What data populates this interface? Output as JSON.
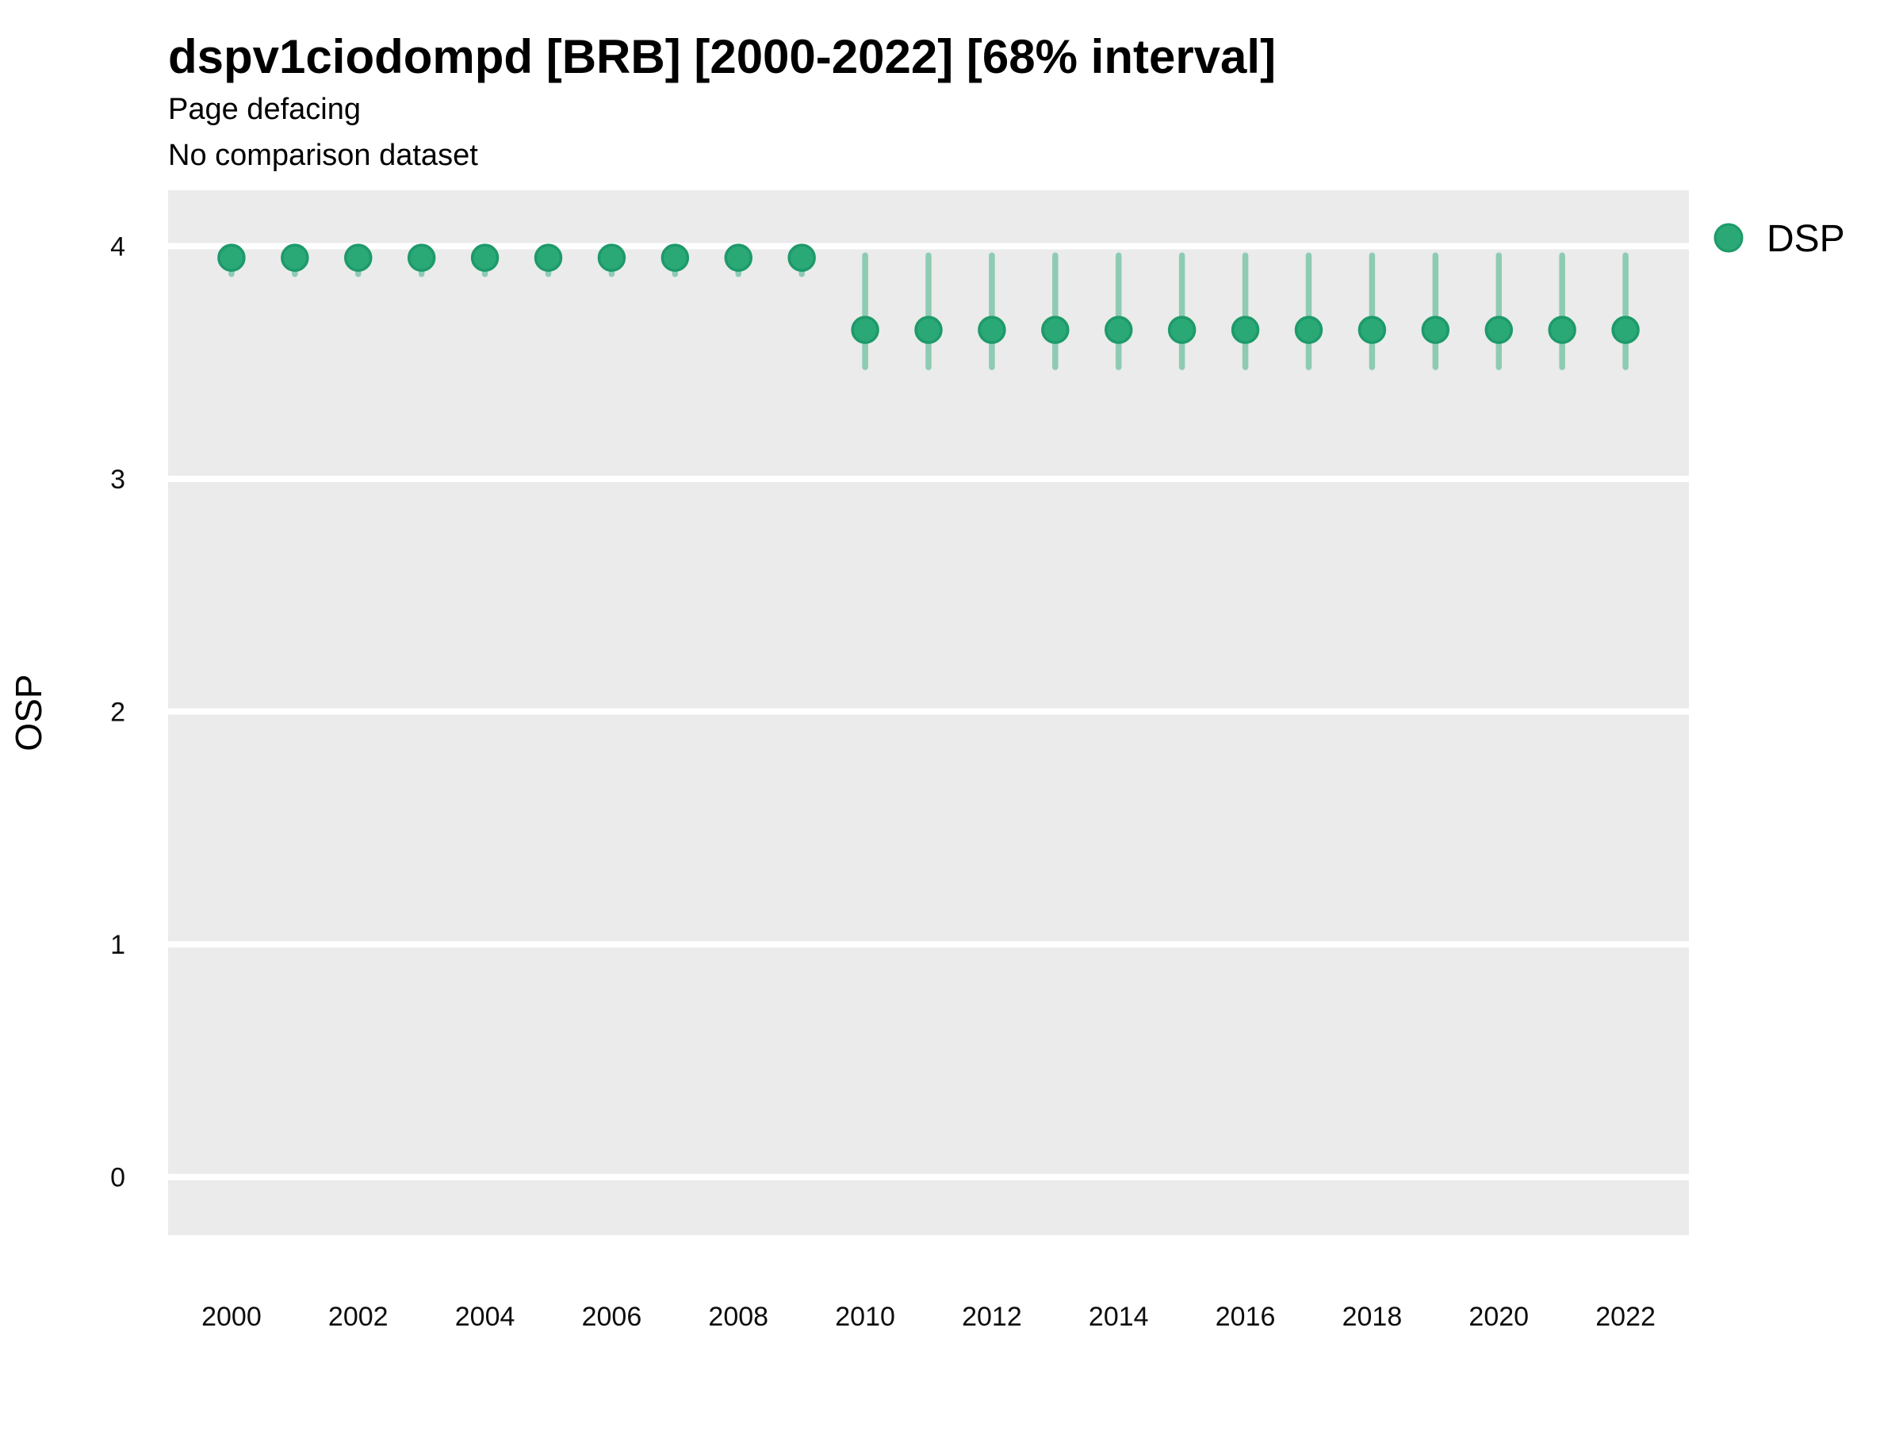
{
  "chart_data": {
    "type": "scatter",
    "title": "dspv1ciodompd [BRB] [2000-2022] [68% interval]",
    "subtitle": "Page defacing",
    "note": "No comparison dataset",
    "xlabel": "",
    "ylabel": "OSP",
    "interval": "68%",
    "grid": "horizontal-major-only",
    "legend": {
      "position": "right",
      "entries": [
        {
          "label": "DSP",
          "color": "#2aa876"
        }
      ]
    },
    "x_ticks": [
      2000,
      2002,
      2004,
      2006,
      2008,
      2010,
      2012,
      2014,
      2016,
      2018,
      2020,
      2022
    ],
    "y_ticks": [
      0,
      1,
      2,
      3,
      4
    ],
    "xlim": [
      1999.0,
      2023.0
    ],
    "ylim": [
      -0.25,
      4.24
    ],
    "series": [
      {
        "name": "DSP",
        "points": [
          {
            "year": 2000,
            "value": 3.95,
            "lo": 3.88,
            "hi": 3.99
          },
          {
            "year": 2001,
            "value": 3.95,
            "lo": 3.88,
            "hi": 3.99
          },
          {
            "year": 2002,
            "value": 3.95,
            "lo": 3.88,
            "hi": 3.99
          },
          {
            "year": 2003,
            "value": 3.95,
            "lo": 3.88,
            "hi": 3.99
          },
          {
            "year": 2004,
            "value": 3.95,
            "lo": 3.88,
            "hi": 3.99
          },
          {
            "year": 2005,
            "value": 3.95,
            "lo": 3.88,
            "hi": 3.99
          },
          {
            "year": 2006,
            "value": 3.95,
            "lo": 3.88,
            "hi": 3.99
          },
          {
            "year": 2007,
            "value": 3.95,
            "lo": 3.88,
            "hi": 3.99
          },
          {
            "year": 2008,
            "value": 3.95,
            "lo": 3.88,
            "hi": 3.99
          },
          {
            "year": 2009,
            "value": 3.95,
            "lo": 3.88,
            "hi": 3.99
          },
          {
            "year": 2010,
            "value": 3.64,
            "lo": 3.48,
            "hi": 3.96
          },
          {
            "year": 2011,
            "value": 3.64,
            "lo": 3.48,
            "hi": 3.96
          },
          {
            "year": 2012,
            "value": 3.64,
            "lo": 3.48,
            "hi": 3.96
          },
          {
            "year": 2013,
            "value": 3.64,
            "lo": 3.48,
            "hi": 3.96
          },
          {
            "year": 2014,
            "value": 3.64,
            "lo": 3.48,
            "hi": 3.96
          },
          {
            "year": 2015,
            "value": 3.64,
            "lo": 3.48,
            "hi": 3.96
          },
          {
            "year": 2016,
            "value": 3.64,
            "lo": 3.48,
            "hi": 3.96
          },
          {
            "year": 2017,
            "value": 3.64,
            "lo": 3.48,
            "hi": 3.96
          },
          {
            "year": 2018,
            "value": 3.64,
            "lo": 3.48,
            "hi": 3.96
          },
          {
            "year": 2019,
            "value": 3.64,
            "lo": 3.48,
            "hi": 3.96
          },
          {
            "year": 2020,
            "value": 3.64,
            "lo": 3.48,
            "hi": 3.96
          },
          {
            "year": 2021,
            "value": 3.64,
            "lo": 3.48,
            "hi": 3.96
          },
          {
            "year": 2022,
            "value": 3.64,
            "lo": 3.48,
            "hi": 3.96
          }
        ]
      }
    ]
  },
  "style": {
    "point_fill": "#2aa876",
    "point_stroke": "#1e9a6a",
    "errorbar_color": "#8ecbb3",
    "panel_bg": "#ebebeb",
    "grid_color": "#ffffff",
    "text_color": "#000000"
  }
}
